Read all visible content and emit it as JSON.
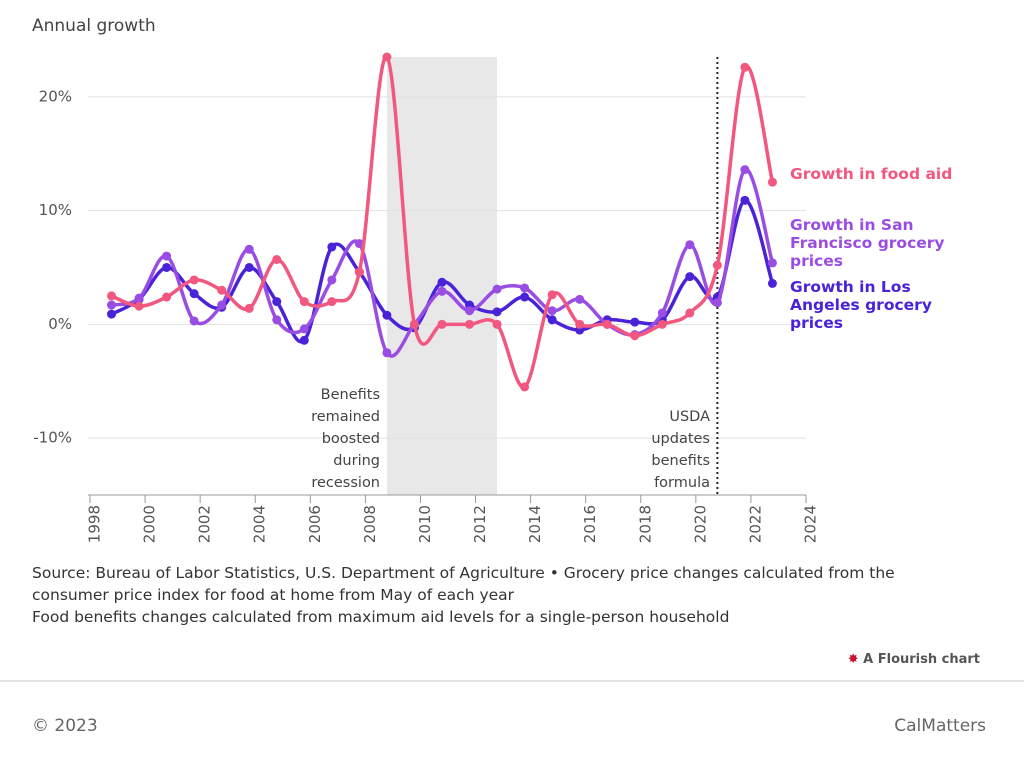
{
  "chart_data": {
    "type": "line",
    "y_label": "Annual growth",
    "x": [
      1998.6,
      1999.6,
      2000.6,
      2001.6,
      2002.6,
      2003.6,
      2004.6,
      2005.6,
      2006.6,
      2007.6,
      2008.6,
      2009.6,
      2010.6,
      2011.6,
      2012.6,
      2013.6,
      2014.6,
      2015.6,
      2016.6,
      2017.6,
      2018.6,
      2019.6,
      2020.6,
      2021.6,
      2022.6
    ],
    "series": [
      {
        "name": "Growth in food aid",
        "color": "#f2577f",
        "values": [
          2.5,
          1.6,
          2.4,
          3.9,
          3.0,
          1.4,
          5.7,
          2.0,
          2.0,
          4.6,
          23.5,
          0,
          0,
          0,
          0,
          -5.5,
          2.6,
          0,
          0,
          -1.0,
          0,
          1.0,
          5.2,
          22.6,
          12.5
        ]
      },
      {
        "name": "Growth in San Francisco grocery prices",
        "color": "#9a4de2",
        "values": [
          1.7,
          2.3,
          6.0,
          0.3,
          1.7,
          6.6,
          0.4,
          -0.4,
          3.9,
          7.1,
          -2.5,
          0,
          2.9,
          1.2,
          3.1,
          3.2,
          1.2,
          2.2,
          0,
          -0.9,
          1.0,
          7.0,
          1.9,
          13.6,
          5.4
        ]
      },
      {
        "name": "Growth in Los Angeles grocery prices",
        "color": "#4a22d8",
        "values": [
          0.9,
          2.2,
          5.0,
          2.7,
          1.5,
          5.0,
          2.0,
          -1.4,
          6.8,
          4.6,
          0.8,
          -0.3,
          3.7,
          1.7,
          1.1,
          2.4,
          0.4,
          -0.5,
          0.4,
          0.2,
          0.4,
          4.2,
          2.4,
          10.9,
          3.6
        ]
      }
    ],
    "xlim": [
      1998,
      2024
    ],
    "xticks": [
      1998,
      2000,
      2002,
      2004,
      2006,
      2008,
      2010,
      2012,
      2014,
      2016,
      2018,
      2020,
      2022,
      2024
    ],
    "ylim": [
      -15,
      23.5
    ],
    "yticks": [
      {
        "value": 20,
        "label": "20%"
      },
      {
        "value": 10,
        "label": "10%"
      },
      {
        "value": 0,
        "label": "0%"
      },
      {
        "value": -10,
        "label": "-10%"
      }
    ],
    "grid": true,
    "shaded_range": {
      "x": [
        2008.6,
        2012.6
      ],
      "label": "Benefits remained boosted during recession"
    },
    "reference_line": {
      "x": 2020.6,
      "label": "USDA updates benefits formula"
    }
  },
  "notes": [
    "Source: Bureau of Labor Statistics, U.S. Department of Agriculture • Grocery price changes calculated from the consumer price index for food at home from May of each year",
    "Food benefits changes calculated from maximum aid levels for a single-person household"
  ],
  "credit": "A Flourish chart",
  "copyright": "© 2023",
  "publisher": "CalMatters"
}
